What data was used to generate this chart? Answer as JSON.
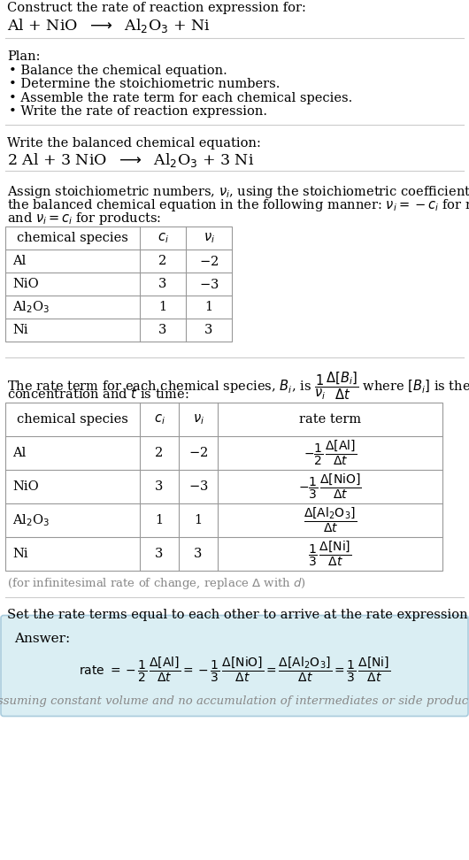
{
  "bg_color": "#ffffff",
  "title_line1": "Construct the rate of reaction expression for:",
  "plan_header": "Plan:",
  "plan_items": [
    "• Balance the chemical equation.",
    "• Determine the stoichiometric numbers.",
    "• Assemble the rate term for each chemical species.",
    "• Write the rate of reaction expression."
  ],
  "balanced_header": "Write the balanced chemical equation:",
  "stoich_line1": "Assign stoichiometric numbers, $\\nu_i$, using the stoichiometric coefficients, $c_i$, from",
  "stoich_line2": "the balanced chemical equation in the following manner: $\\nu_i = -c_i$ for reactants",
  "stoich_line3": "and $\\nu_i = c_i$ for products:",
  "rate_line1": "The rate term for each chemical species, $B_i$, is $\\dfrac{1}{\\nu_i}\\dfrac{\\Delta[B_i]}{\\Delta t}$ where $[B_i]$ is the amount",
  "rate_line2": "concentration and $t$ is time:",
  "infinitesimal_note": "(for infinitesimal rate of change, replace $\\Delta$ with $d$)",
  "set_equal_intro": "Set the rate terms equal to each other to arrive at the rate expression:",
  "answer_label": "Answer:",
  "answer_note": "(assuming constant volume and no accumulation of intermediates or side products)",
  "light_blue": "#daeef3",
  "blue_border": "#aaccdd",
  "line_color": "#cccccc",
  "table_line_color": "#999999",
  "gray_text": "#888888"
}
